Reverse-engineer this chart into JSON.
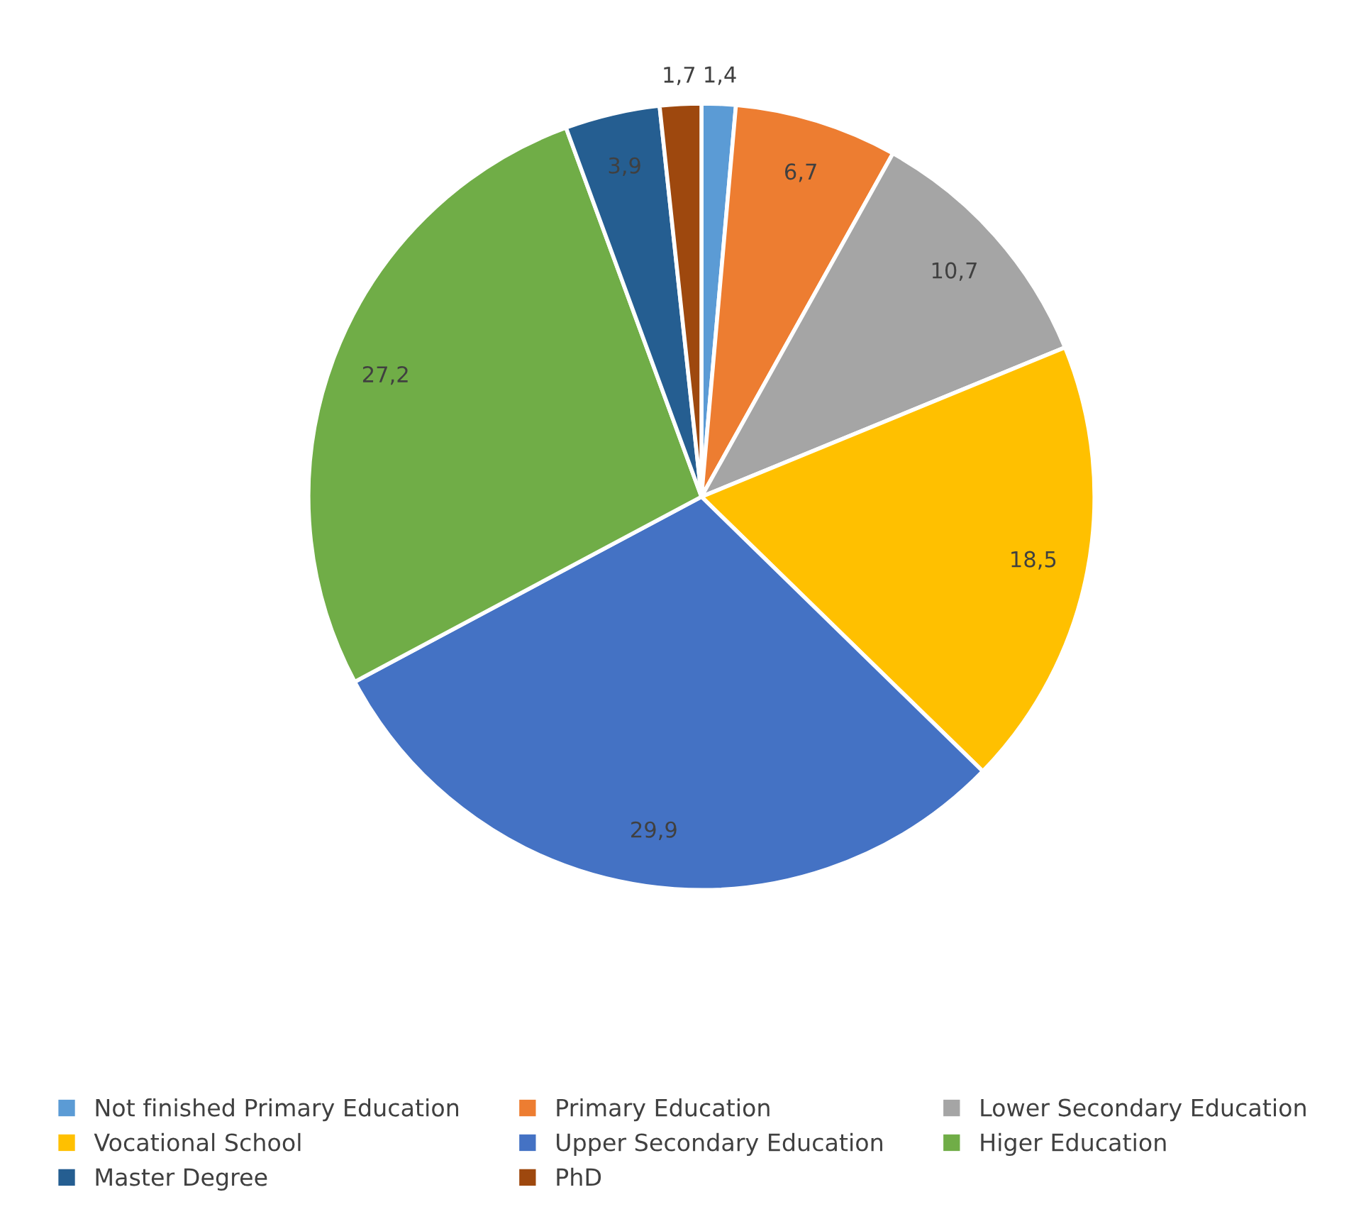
{
  "chart_data": {
    "type": "pie",
    "categories": [
      "Not finished Primary Education",
      "Primary Education",
      "Lower Secondary Education",
      "Vocational School",
      "Upper Secondary Education",
      "Higer Education",
      "Master Degree",
      "PhD"
    ],
    "values": [
      1.4,
      6.7,
      10.7,
      18.5,
      29.9,
      27.2,
      3.9,
      1.7
    ],
    "value_labels": [
      "1,4",
      "6,7",
      "10,7",
      "18,5",
      "29,9",
      "27,2",
      "3,9",
      "1,7"
    ],
    "colors": [
      "#5b9bd5",
      "#ed7d31",
      "#a5a5a5",
      "#ffc000",
      "#4472c4",
      "#70ad47",
      "#255e91",
      "#9e480e"
    ],
    "legend": "bottom"
  }
}
